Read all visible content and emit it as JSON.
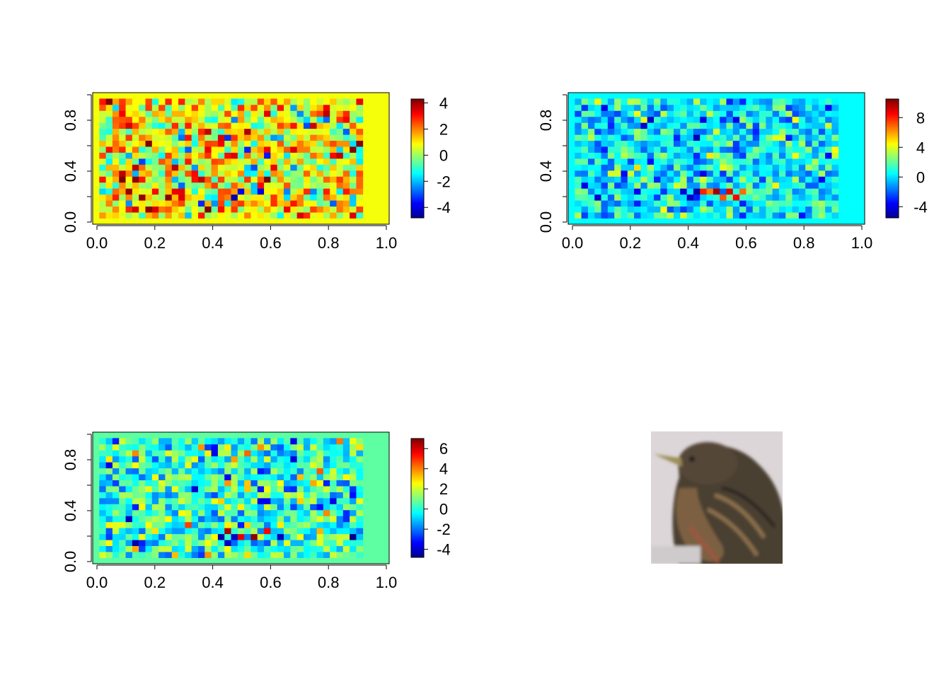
{
  "figure": {
    "layout": "2x2 grid: three heatmap panels with color legends and one photo panel"
  },
  "chart_data": [
    {
      "type": "heatmap",
      "panel": "top-left",
      "title": "",
      "xlabel": "",
      "ylabel": "",
      "xlim": [
        0.0,
        1.0
      ],
      "ylim": [
        0.0,
        1.0
      ],
      "x_ticks": [
        "0.0",
        "0.2",
        "0.4",
        "0.6",
        "0.8",
        "1.0"
      ],
      "y_ticks": [
        "0.0",
        "0.4",
        "0.8"
      ],
      "zlim": [
        -4.8,
        4.3
      ],
      "legend_ticks": [
        "4",
        "2",
        "0",
        "-2",
        "-4"
      ],
      "legend_tick_values": [
        4,
        2,
        0,
        -2,
        -4
      ],
      "background_value": 0.8,
      "grid": {
        "cols": 45,
        "rows": 22,
        "active_cols": [
          1,
          40
        ],
        "active_rows": [
          1,
          20
        ],
        "seed": 17,
        "spread": 1.4,
        "bias": 0.8
      },
      "hotspots": [
        {
          "c": 8,
          "r": 2,
          "v": 4.2
        },
        {
          "c": 9,
          "r": 2,
          "v": 3.5
        },
        {
          "c": 38,
          "r": 17,
          "v": 3.2
        },
        {
          "c": 21,
          "r": 4,
          "v": -4.5
        },
        {
          "c": 22,
          "r": 5,
          "v": -3.8
        },
        {
          "c": 25,
          "r": 5,
          "v": -4.0
        },
        {
          "c": 16,
          "r": 3,
          "v": -3.3
        },
        {
          "c": 30,
          "r": 3,
          "v": 3.0
        },
        {
          "c": 19,
          "r": 2,
          "v": 3.1
        },
        {
          "c": 32,
          "r": 16,
          "v": -3.0
        },
        {
          "c": 35,
          "r": 19,
          "v": 3.3
        },
        {
          "c": 12,
          "r": 16,
          "v": 2.8
        }
      ]
    },
    {
      "type": "heatmap",
      "panel": "top-right",
      "title": "",
      "xlabel": "",
      "ylabel": "",
      "xlim": [
        0.0,
        1.0
      ],
      "ylim": [
        0.0,
        1.0
      ],
      "x_ticks": [
        "0.0",
        "0.2",
        "0.4",
        "0.6",
        "0.8",
        "1.0"
      ],
      "y_ticks": [
        "0.0",
        "0.4",
        "0.8"
      ],
      "zlim": [
        -5.5,
        10.5
      ],
      "legend_ticks": [
        "8",
        "4",
        "0",
        "-4"
      ],
      "legend_tick_values": [
        8,
        4,
        0,
        -4
      ],
      "background_value": 0.5,
      "grid": {
        "cols": 45,
        "rows": 22,
        "active_cols": [
          1,
          40
        ],
        "active_rows": [
          1,
          20
        ],
        "seed": 41,
        "spread": 1.8,
        "bias": 0.3
      },
      "hotspots": [
        {
          "c": 20,
          "r": 5,
          "v": 8.0
        },
        {
          "c": 21,
          "r": 5,
          "v": 6.5
        },
        {
          "c": 22,
          "r": 5,
          "v": 10.0
        },
        {
          "c": 23,
          "r": 4,
          "v": 7.2
        },
        {
          "c": 24,
          "r": 5,
          "v": 9.0
        },
        {
          "c": 25,
          "r": 4,
          "v": 8.5
        },
        {
          "c": 26,
          "r": 5,
          "v": 6.8
        },
        {
          "c": 19,
          "r": 5,
          "v": -5.0
        },
        {
          "c": 18,
          "r": 4,
          "v": -4.6
        },
        {
          "c": 17,
          "r": 5,
          "v": -4.2
        },
        {
          "c": 12,
          "r": 17,
          "v": -4.5
        },
        {
          "c": 34,
          "r": 17,
          "v": 4.5
        }
      ]
    },
    {
      "type": "heatmap",
      "panel": "bottom-left",
      "title": "",
      "xlabel": "",
      "ylabel": "",
      "xlim": [
        0.0,
        1.0
      ],
      "ylim": [
        0.0,
        1.0
      ],
      "x_ticks": [
        "0.0",
        "0.2",
        "0.4",
        "0.6",
        "0.8",
        "1.0"
      ],
      "y_ticks": [
        "0.0",
        "0.4",
        "0.8"
      ],
      "zlim": [
        -4.8,
        7.0
      ],
      "legend_ticks": [
        "6",
        "4",
        "2",
        "0",
        "-2",
        "-4"
      ],
      "legend_tick_values": [
        6,
        4,
        2,
        0,
        -2,
        -4
      ],
      "background_value": 0.7,
      "grid": {
        "cols": 45,
        "rows": 22,
        "active_cols": [
          1,
          40
        ],
        "active_rows": [
          1,
          20
        ],
        "seed": 73,
        "spread": 1.5,
        "bias": 0.2
      },
      "hotspots": [
        {
          "c": 20,
          "r": 5,
          "v": 6.5
        },
        {
          "c": 22,
          "r": 4,
          "v": 5.8
        },
        {
          "c": 24,
          "r": 4,
          "v": 6.8
        },
        {
          "c": 26,
          "r": 5,
          "v": 5.5
        },
        {
          "c": 19,
          "r": 4,
          "v": -4.5
        },
        {
          "c": 21,
          "r": 4,
          "v": -4.0
        },
        {
          "c": 28,
          "r": 4,
          "v": -4.3
        },
        {
          "c": 15,
          "r": 12,
          "v": -4.0
        },
        {
          "c": 34,
          "r": 15,
          "v": 4.5
        },
        {
          "c": 6,
          "r": 3,
          "v": -4.4
        },
        {
          "c": 30,
          "r": 17,
          "v": -3.8
        }
      ]
    }
  ],
  "photo": {
    "kind": "bird-photo",
    "description_icon": "bird-photo-icon",
    "colors": {
      "background": "#dcd6d8",
      "body": "#4a3f33",
      "streak": "#7a6246",
      "beak": "#b8a256",
      "eye": "#1a1a1a",
      "breast": "#8b6a44"
    }
  }
}
